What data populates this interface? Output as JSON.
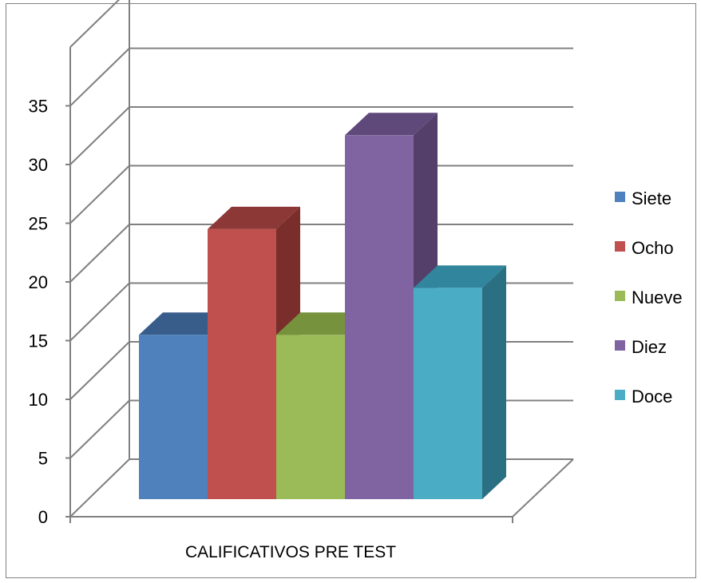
{
  "chart_data": {
    "type": "bar",
    "style": "3d-clustered-column",
    "categories": [
      "CALIFICATIVOS PRE TEST"
    ],
    "series": [
      {
        "name": "Siete",
        "values": [
          14
        ],
        "color": "#4F81BD",
        "top_color": "#385D8A",
        "side_color": "#2F4E74"
      },
      {
        "name": "Ocho",
        "values": [
          23
        ],
        "color": "#C0504D",
        "top_color": "#8C3836",
        "side_color": "#7A2E2C"
      },
      {
        "name": "Nueve",
        "values": [
          14
        ],
        "color": "#9BBB59",
        "top_color": "#76923C",
        "side_color": "#66803A"
      },
      {
        "name": "Diez",
        "values": [
          31
        ],
        "color": "#8064A2",
        "top_color": "#5F497A",
        "side_color": "#533F6A"
      },
      {
        "name": "Doce",
        "values": [
          18
        ],
        "color": "#4BACC6",
        "top_color": "#31859C",
        "side_color": "#2A6F82"
      }
    ],
    "y_ticks": [
      "0",
      "5",
      "10",
      "15",
      "20",
      "25",
      "30",
      "35"
    ],
    "ylim": [
      0,
      35
    ],
    "grid": true,
    "legend_position": "right",
    "title": "",
    "xlabel": "",
    "ylabel": ""
  }
}
